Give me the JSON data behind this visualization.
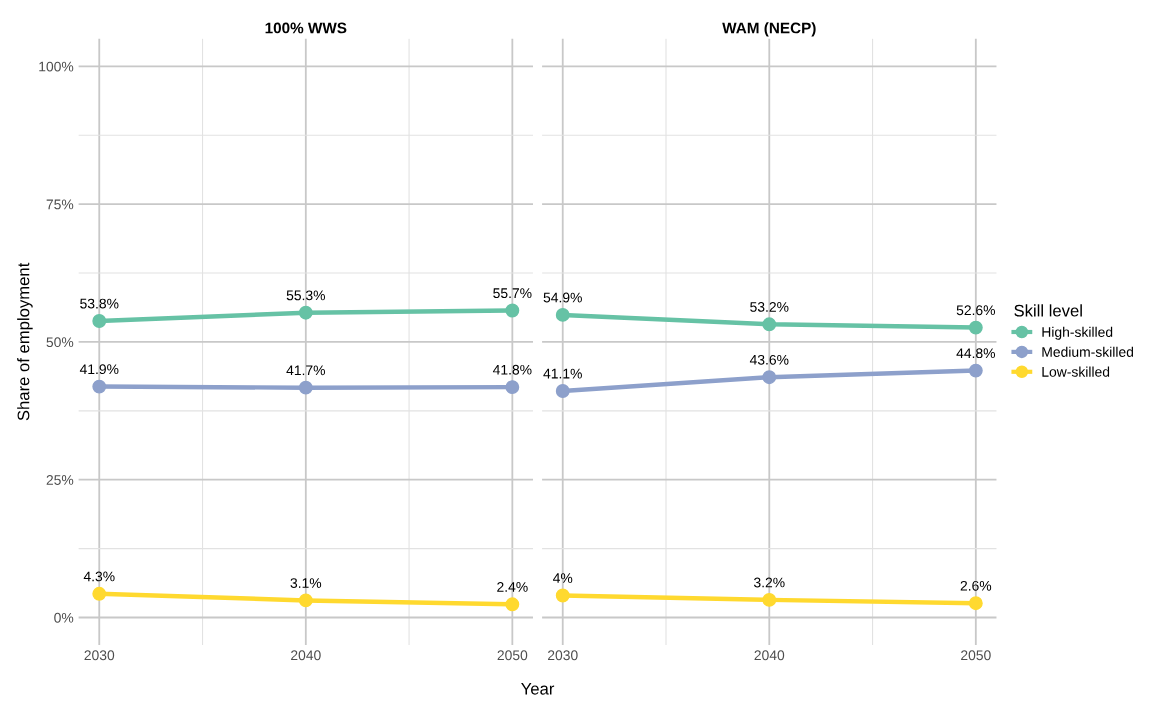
{
  "chart_data": [
    {
      "type": "line",
      "title": "100% WWS",
      "xlabel": "Year",
      "ylabel": "Share of employment",
      "x": [
        2030,
        2040,
        2050
      ],
      "xlim": [
        2029,
        2051
      ],
      "xticks": [
        {
          "value": 2030,
          "label": "2030"
        },
        {
          "value": 2035,
          "label": null
        },
        {
          "value": 2040,
          "label": "2040"
        },
        {
          "value": 2045,
          "label": null
        },
        {
          "value": 2050,
          "label": "2050"
        }
      ],
      "ylim": [
        -5,
        105
      ],
      "yticks": [
        {
          "value": 0,
          "label": "0%"
        },
        {
          "value": 12.5,
          "label": null
        },
        {
          "value": 25,
          "label": "25%"
        },
        {
          "value": 37.5,
          "label": null
        },
        {
          "value": 50,
          "label": "50%"
        },
        {
          "value": 62.5,
          "label": null
        },
        {
          "value": 75,
          "label": "75%"
        },
        {
          "value": 87.5,
          "label": null
        },
        {
          "value": 100,
          "label": "100%"
        }
      ],
      "grid": true,
      "marker": "circle",
      "series": [
        {
          "color": "#66c2a5",
          "values": [
            53.8,
            55.3,
            55.7
          ],
          "value_labels": [
            "53.8%",
            "55.3%",
            "55.7%"
          ]
        },
        {
          "color": "#8da0cb",
          "values": [
            41.9,
            41.7,
            41.8
          ],
          "value_labels": [
            "41.9%",
            "41.7%",
            "41.8%"
          ]
        },
        {
          "color": "#ffd92f",
          "values": [
            4.3,
            3.1,
            2.4
          ],
          "value_labels": [
            "4.3%",
            "3.1%",
            "2.4%"
          ]
        }
      ]
    },
    {
      "type": "line",
      "title": "WAM (NECP)",
      "x": [
        2030,
        2040,
        2050
      ],
      "xlim": [
        2029,
        2051
      ],
      "xticks": [
        {
          "value": 2030,
          "label": "2030"
        },
        {
          "value": 2035,
          "label": null
        },
        {
          "value": 2040,
          "label": "2040"
        },
        {
          "value": 2045,
          "label": null
        },
        {
          "value": 2050,
          "label": "2050"
        }
      ],
      "ylim": [
        -5,
        105
      ],
      "yticks": [
        {
          "value": 0,
          "label": null
        },
        {
          "value": 12.5,
          "label": null
        },
        {
          "value": 25,
          "label": null
        },
        {
          "value": 37.5,
          "label": null
        },
        {
          "value": 50,
          "label": null
        },
        {
          "value": 62.5,
          "label": null
        },
        {
          "value": 75,
          "label": null
        },
        {
          "value": 87.5,
          "label": null
        },
        {
          "value": 100,
          "label": null
        }
      ],
      "tick_labels": "x",
      "grid": true,
      "marker": "circle",
      "legend": "right",
      "legend_title": "Skill level",
      "series": [
        {
          "name": "High-skilled",
          "color": "#66c2a5",
          "values": [
            54.9,
            53.2,
            52.6
          ],
          "value_labels": [
            "54.9%",
            "53.2%",
            "52.6%"
          ]
        },
        {
          "name": "Medium-skilled",
          "color": "#8da0cb",
          "values": [
            41.1,
            43.6,
            44.8
          ],
          "value_labels": [
            "41.1%",
            "43.6%",
            "44.8%"
          ]
        },
        {
          "name": "Low-skilled",
          "color": "#ffd92f",
          "values": [
            4,
            3.2,
            2.6
          ],
          "value_labels": [
            "4%",
            "3.2%",
            "2.6%"
          ]
        }
      ]
    }
  ]
}
